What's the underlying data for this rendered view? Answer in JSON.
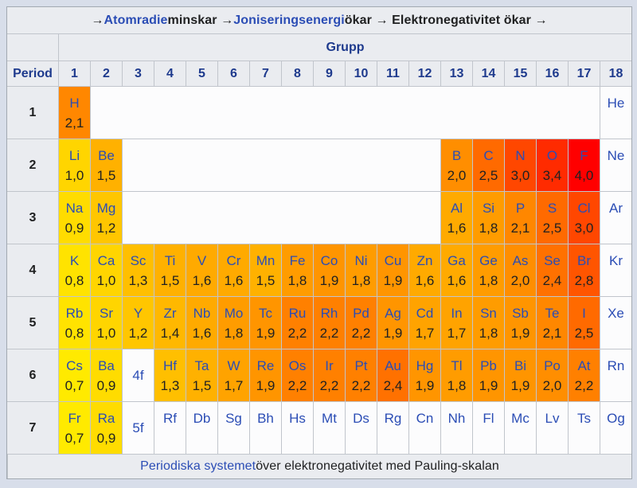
{
  "page": {
    "background": "#d8deea"
  },
  "colors": {
    "header_bg": "#eaecf0",
    "caption_bg": "#eaecf0",
    "border": "#c1c5cc",
    "outer_border": "#a2a9b1",
    "link_blue": "#2b4db5",
    "header_navy": "#1e3a8d",
    "text": "#202122",
    "white_cell": "#fcfcfd"
  },
  "top_caption": {
    "segments": [
      {
        "text": "→ ",
        "link": false
      },
      {
        "text": "Atomradie",
        "link": true,
        "name": "link-atomradie"
      },
      {
        "text": " minskar → ",
        "link": false
      },
      {
        "text": "Joniseringsenergi",
        "link": true,
        "name": "link-joniseringsenergi"
      },
      {
        "text": " ökar → Elektronegativitet ökar →",
        "link": false
      }
    ]
  },
  "group_header": "Grupp",
  "period_header": "Period",
  "group_numbers": [
    "1",
    "2",
    "3",
    "4",
    "5",
    "6",
    "7",
    "8",
    "9",
    "10",
    "11",
    "12",
    "13",
    "14",
    "15",
    "16",
    "17",
    "18"
  ],
  "footer_caption": {
    "segments": [
      {
        "text": "Periodiska systemet",
        "link": true,
        "name": "link-periodiska-systemet"
      },
      {
        "text": " över elektronegativitet med Pauling-skalan",
        "link": false
      }
    ]
  },
  "color_scale": {
    "0,7": "#FFEA00",
    "0,8": "#FFE300",
    "0,9": "#FFDC00",
    "1,0": "#FFD500",
    "1,2": "#FFC600",
    "1,3": "#FFBF00",
    "1,4": "#FFB800",
    "1,5": "#FFB100",
    "1,6": "#FFAA00",
    "1,7": "#FFA300",
    "1,8": "#FF9C00",
    "1,9": "#FF9500",
    "2,0": "#FF8E00",
    "2,1": "#FF8700",
    "2,2": "#FF8000",
    "2,4": "#FF7100",
    "2,5": "#FF6A00",
    "2,8": "#FF5500",
    "3,0": "#FF4700",
    "3,4": "#FF2B00",
    "4,0": "#FF0000"
  },
  "periods": [
    {
      "period": "1",
      "cells": [
        {
          "type": "el",
          "sym": "H",
          "val": "2,1"
        },
        {
          "type": "gap",
          "span": 16
        },
        {
          "type": "el",
          "sym": "He"
        }
      ]
    },
    {
      "period": "2",
      "cells": [
        {
          "type": "el",
          "sym": "Li",
          "val": "1,0"
        },
        {
          "type": "el",
          "sym": "Be",
          "val": "1,5"
        },
        {
          "type": "gap",
          "span": 10
        },
        {
          "type": "el",
          "sym": "B",
          "val": "2,0"
        },
        {
          "type": "el",
          "sym": "C",
          "val": "2,5"
        },
        {
          "type": "el",
          "sym": "N",
          "val": "3,0"
        },
        {
          "type": "el",
          "sym": "O",
          "val": "3,4"
        },
        {
          "type": "el",
          "sym": "F",
          "val": "4,0"
        },
        {
          "type": "el",
          "sym": "Ne"
        }
      ]
    },
    {
      "period": "3",
      "cells": [
        {
          "type": "el",
          "sym": "Na",
          "val": "0,9"
        },
        {
          "type": "el",
          "sym": "Mg",
          "val": "1,2"
        },
        {
          "type": "gap",
          "span": 10
        },
        {
          "type": "el",
          "sym": "Al",
          "val": "1,6"
        },
        {
          "type": "el",
          "sym": "Si",
          "val": "1,8"
        },
        {
          "type": "el",
          "sym": "P",
          "val": "2,1"
        },
        {
          "type": "el",
          "sym": "S",
          "val": "2,5"
        },
        {
          "type": "el",
          "sym": "Cl",
          "val": "3,0"
        },
        {
          "type": "el",
          "sym": "Ar"
        }
      ]
    },
    {
      "period": "4",
      "cells": [
        {
          "type": "el",
          "sym": "K",
          "val": "0,8"
        },
        {
          "type": "el",
          "sym": "Ca",
          "val": "1,0"
        },
        {
          "type": "el",
          "sym": "Sc",
          "val": "1,3"
        },
        {
          "type": "el",
          "sym": "Ti",
          "val": "1,5"
        },
        {
          "type": "el",
          "sym": "V",
          "val": "1,6"
        },
        {
          "type": "el",
          "sym": "Cr",
          "val": "1,6"
        },
        {
          "type": "el",
          "sym": "Mn",
          "val": "1,5"
        },
        {
          "type": "el",
          "sym": "Fe",
          "val": "1,8"
        },
        {
          "type": "el",
          "sym": "Co",
          "val": "1,9"
        },
        {
          "type": "el",
          "sym": "Ni",
          "val": "1,8"
        },
        {
          "type": "el",
          "sym": "Cu",
          "val": "1,9"
        },
        {
          "type": "el",
          "sym": "Zn",
          "val": "1,6"
        },
        {
          "type": "el",
          "sym": "Ga",
          "val": "1,6"
        },
        {
          "type": "el",
          "sym": "Ge",
          "val": "1,8"
        },
        {
          "type": "el",
          "sym": "As",
          "val": "2,0"
        },
        {
          "type": "el",
          "sym": "Se",
          "val": "2,4"
        },
        {
          "type": "el",
          "sym": "Br",
          "val": "2,8"
        },
        {
          "type": "el",
          "sym": "Kr"
        }
      ]
    },
    {
      "period": "5",
      "cells": [
        {
          "type": "el",
          "sym": "Rb",
          "val": "0,8"
        },
        {
          "type": "el",
          "sym": "Sr",
          "val": "1,0"
        },
        {
          "type": "el",
          "sym": "Y",
          "val": "1,2"
        },
        {
          "type": "el",
          "sym": "Zr",
          "val": "1,4"
        },
        {
          "type": "el",
          "sym": "Nb",
          "val": "1,6"
        },
        {
          "type": "el",
          "sym": "Mo",
          "val": "1,8"
        },
        {
          "type": "el",
          "sym": "Tc",
          "val": "1,9"
        },
        {
          "type": "el",
          "sym": "Ru",
          "val": "2,2"
        },
        {
          "type": "el",
          "sym": "Rh",
          "val": "2,2"
        },
        {
          "type": "el",
          "sym": "Pd",
          "val": "2,2"
        },
        {
          "type": "el",
          "sym": "Ag",
          "val": "1,9"
        },
        {
          "type": "el",
          "sym": "Cd",
          "val": "1,7"
        },
        {
          "type": "el",
          "sym": "In",
          "val": "1,7"
        },
        {
          "type": "el",
          "sym": "Sn",
          "val": "1,8"
        },
        {
          "type": "el",
          "sym": "Sb",
          "val": "1,9"
        },
        {
          "type": "el",
          "sym": "Te",
          "val": "2,1"
        },
        {
          "type": "el",
          "sym": "I",
          "val": "2,5"
        },
        {
          "type": "el",
          "sym": "Xe"
        }
      ]
    },
    {
      "period": "6",
      "cells": [
        {
          "type": "el",
          "sym": "Cs",
          "val": "0,7"
        },
        {
          "type": "el",
          "sym": "Ba",
          "val": "0,9"
        },
        {
          "type": "f",
          "sym": "4f"
        },
        {
          "type": "el",
          "sym": "Hf",
          "val": "1,3"
        },
        {
          "type": "el",
          "sym": "Ta",
          "val": "1,5"
        },
        {
          "type": "el",
          "sym": "W",
          "val": "1,7"
        },
        {
          "type": "el",
          "sym": "Re",
          "val": "1,9"
        },
        {
          "type": "el",
          "sym": "Os",
          "val": "2,2"
        },
        {
          "type": "el",
          "sym": "Ir",
          "val": "2,2"
        },
        {
          "type": "el",
          "sym": "Pt",
          "val": "2,2"
        },
        {
          "type": "el",
          "sym": "Au",
          "val": "2,4"
        },
        {
          "type": "el",
          "sym": "Hg",
          "val": "1,9"
        },
        {
          "type": "el",
          "sym": "Tl",
          "val": "1,8"
        },
        {
          "type": "el",
          "sym": "Pb",
          "val": "1,9"
        },
        {
          "type": "el",
          "sym": "Bi",
          "val": "1,9"
        },
        {
          "type": "el",
          "sym": "Po",
          "val": "2,0"
        },
        {
          "type": "el",
          "sym": "At",
          "val": "2,2"
        },
        {
          "type": "el",
          "sym": "Rn"
        }
      ]
    },
    {
      "period": "7",
      "cells": [
        {
          "type": "el",
          "sym": "Fr",
          "val": "0,7"
        },
        {
          "type": "el",
          "sym": "Ra",
          "val": "0,9"
        },
        {
          "type": "f",
          "sym": "5f"
        },
        {
          "type": "el",
          "sym": "Rf"
        },
        {
          "type": "el",
          "sym": "Db"
        },
        {
          "type": "el",
          "sym": "Sg"
        },
        {
          "type": "el",
          "sym": "Bh"
        },
        {
          "type": "el",
          "sym": "Hs"
        },
        {
          "type": "el",
          "sym": "Mt"
        },
        {
          "type": "el",
          "sym": "Ds"
        },
        {
          "type": "el",
          "sym": "Rg"
        },
        {
          "type": "el",
          "sym": "Cn"
        },
        {
          "type": "el",
          "sym": "Nh"
        },
        {
          "type": "el",
          "sym": "Fl"
        },
        {
          "type": "el",
          "sym": "Mc"
        },
        {
          "type": "el",
          "sym": "Lv"
        },
        {
          "type": "el",
          "sym": "Ts"
        },
        {
          "type": "el",
          "sym": "Og"
        }
      ]
    }
  ]
}
